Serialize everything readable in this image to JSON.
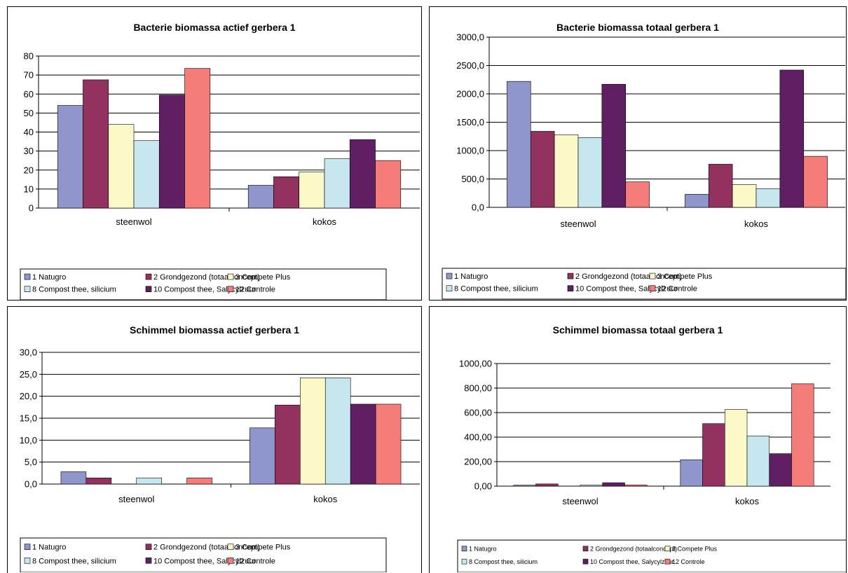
{
  "series_colors": [
    "#8e96cc",
    "#93325f",
    "#fbf9c7",
    "#c6e7ee",
    "#611f63",
    "#f47c79"
  ],
  "chart_data": [
    {
      "type": "bar",
      "title": "Bacterie biomassa actief gerbera 1",
      "categories": [
        "steenwol",
        "kokos"
      ],
      "ylim": [
        0,
        80
      ],
      "yticks": [
        "0",
        "10",
        "20",
        "30",
        "40",
        "50",
        "60",
        "70",
        "80"
      ],
      "grid": true,
      "legend": "bottom",
      "legend_labels": [
        "1 Natugro",
        "2 Grondgezond (totaalconcept)",
        "3 Compete Plus",
        "8 Compost thee, silicium",
        "10 Compost thee, Salycylzuur",
        "12 Controle"
      ],
      "series": [
        {
          "values": [
            54,
            12
          ]
        },
        {
          "values": [
            67.5,
            16.5
          ]
        },
        {
          "values": [
            44,
            19
          ]
        },
        {
          "values": [
            35.5,
            26
          ]
        },
        {
          "values": [
            59.5,
            36
          ]
        },
        {
          "values": [
            73.5,
            25
          ]
        }
      ]
    },
    {
      "type": "bar",
      "title": "Bacterie biomassa totaal gerbera 1",
      "categories": [
        "steenwol",
        "kokos"
      ],
      "ylim": [
        0,
        3000
      ],
      "yticks": [
        "0,0",
        "500,0",
        "1000,0",
        "1500,0",
        "2000,0",
        "2500,0",
        "3000,0"
      ],
      "grid": true,
      "legend": "bottom",
      "legend_labels": [
        "1 Natugro",
        "2 Grondgezond (totaalconcept)",
        "3 Compete Plus",
        "8 Compost thee, silicium",
        "10 Compost thee, Salycylzuur",
        "12 Controle"
      ],
      "series": [
        {
          "values": [
            2220,
            230
          ]
        },
        {
          "values": [
            1340,
            760
          ]
        },
        {
          "values": [
            1280,
            400
          ]
        },
        {
          "values": [
            1230,
            330
          ]
        },
        {
          "values": [
            2170,
            2420
          ]
        },
        {
          "values": [
            450,
            900
          ]
        }
      ]
    },
    {
      "type": "bar",
      "title": "Schimmel biomassa actief gerbera 1",
      "categories": [
        "steenwol",
        "kokos"
      ],
      "ylim": [
        0,
        30
      ],
      "yticks": [
        "0,0",
        "5,0",
        "10,0",
        "15,0",
        "20,0",
        "25,0",
        "30,0"
      ],
      "grid": true,
      "legend": "bottom",
      "legend_labels": [
        "1 Natugro",
        "2 Grondgezond (totaalconcept)",
        "3 Compete Plus",
        "8 Compost thee, silicium",
        "10 Compost thee, Salycylzuur",
        "12 Controle"
      ],
      "series": [
        {
          "values": [
            2.8,
            12.8
          ]
        },
        {
          "values": [
            1.4,
            18.0
          ]
        },
        {
          "values": [
            0,
            24.2
          ]
        },
        {
          "values": [
            1.4,
            24.2
          ]
        },
        {
          "values": [
            0,
            18.2
          ]
        },
        {
          "values": [
            1.4,
            18.2
          ]
        }
      ]
    },
    {
      "type": "bar",
      "title": "Schimmel biomassa totaal gerbera 1",
      "categories": [
        "steenwol",
        "kokos"
      ],
      "ylim": [
        0,
        1000
      ],
      "yticks": [
        "0,00",
        "200,00",
        "400,00",
        "600,00",
        "800,00",
        "1000,00"
      ],
      "grid": true,
      "legend": "bottom",
      "legend_labels": [
        "1 Natugro",
        "2 Grondgezond (totaalconcept)",
        "3 Compete Plus",
        "8 Compost thee, silicium",
        "10 Compost thee, Salycylzuur",
        "12 Controle"
      ],
      "series": [
        {
          "values": [
            8,
            215
          ]
        },
        {
          "values": [
            18,
            510
          ]
        },
        {
          "values": [
            0,
            625
          ]
        },
        {
          "values": [
            10,
            410
          ]
        },
        {
          "values": [
            28,
            265
          ]
        },
        {
          "values": [
            10,
            835
          ]
        }
      ]
    }
  ]
}
